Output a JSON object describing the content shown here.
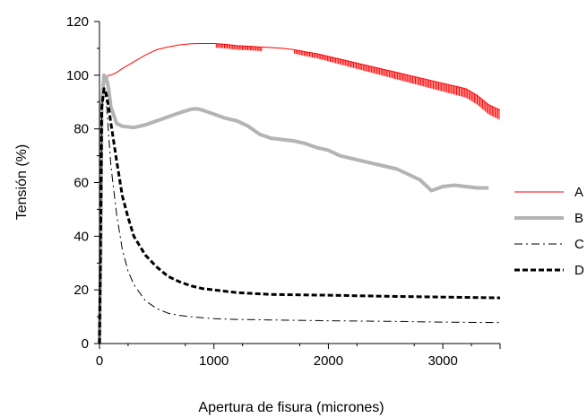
{
  "chart_data": {
    "type": "line",
    "title": "",
    "xlabel": "Apertura de fisura (micrones)",
    "ylabel": "Tensión (%)",
    "xlim": [
      0,
      3500
    ],
    "ylim": [
      0,
      120
    ],
    "xticks": [
      0,
      1000,
      2000,
      3000
    ],
    "yticks": [
      0,
      20,
      40,
      60,
      80,
      100,
      120
    ],
    "grid": false,
    "legend_position": "right",
    "series": [
      {
        "name": "A",
        "color": "#ff0000",
        "style": "solid-thin-noisy",
        "x": [
          0,
          10,
          20,
          40,
          60,
          80,
          100,
          150,
          200,
          300,
          400,
          500,
          600,
          700,
          800,
          900,
          1000,
          1100,
          1200,
          1300,
          1400,
          1500,
          1600,
          1700,
          1800,
          1900,
          2000,
          2100,
          2200,
          2300,
          2400,
          2500,
          2600,
          2700,
          2800,
          2900,
          3000,
          3100,
          3200,
          3300,
          3400,
          3500
        ],
        "y": [
          0,
          20,
          80,
          98,
          99,
          100,
          100,
          101,
          102.5,
          105,
          107.5,
          109.5,
          110.5,
          111.3,
          111.7,
          111.8,
          111.8,
          111.5,
          111,
          110.8,
          110.5,
          110.3,
          110,
          109.5,
          108.7,
          108,
          107,
          106,
          105,
          104,
          103,
          102,
          101,
          100,
          99,
          98,
          97,
          96,
          95,
          92.5,
          89,
          87
        ]
      },
      {
        "name": "B",
        "color": "#b4b4b4",
        "style": "solid-thick",
        "x": [
          0,
          10,
          20,
          40,
          60,
          80,
          100,
          150,
          200,
          300,
          400,
          500,
          600,
          700,
          800,
          850,
          900,
          1000,
          1100,
          1200,
          1300,
          1400,
          1500,
          1600,
          1700,
          1800,
          1900,
          2000,
          2100,
          2200,
          2300,
          2400,
          2500,
          2600,
          2700,
          2800,
          2900,
          3000,
          3100,
          3200,
          3300,
          3400
        ],
        "y": [
          0,
          30,
          90,
          100,
          99,
          95,
          88,
          82,
          81,
          80.5,
          81.5,
          83,
          84.5,
          86,
          87.3,
          87.5,
          87,
          85.5,
          84,
          83,
          81,
          78,
          76.5,
          76,
          75.5,
          74.5,
          73,
          72,
          70,
          69,
          68,
          67,
          66,
          65,
          63,
          61,
          57,
          58.5,
          59,
          58.5,
          58,
          58
        ]
      },
      {
        "name": "C",
        "color": "#000000",
        "style": "dash-dot",
        "x": [
          0,
          10,
          20,
          40,
          60,
          80,
          100,
          150,
          200,
          250,
          300,
          400,
          500,
          600,
          700,
          800,
          900,
          1000,
          1200,
          1500,
          2000,
          2500,
          3000,
          3500
        ],
        "y": [
          0,
          40,
          88,
          95,
          90,
          78,
          66,
          48,
          35,
          27,
          22,
          16,
          13,
          11.3,
          10.5,
          10,
          9.6,
          9.3,
          9,
          8.8,
          8.5,
          8.3,
          8,
          7.8
        ]
      },
      {
        "name": "D",
        "color": "#000000",
        "style": "dashed-thick",
        "x": [
          0,
          10,
          20,
          40,
          60,
          80,
          100,
          150,
          200,
          250,
          300,
          400,
          500,
          600,
          700,
          800,
          900,
          1000,
          1200,
          1500,
          2000,
          2500,
          3000,
          3500
        ],
        "y": [
          0,
          40,
          88,
          95,
          93,
          88,
          82,
          68,
          55,
          47,
          40,
          33,
          28.5,
          25,
          23,
          21.5,
          20.5,
          20,
          19,
          18.3,
          18,
          17.6,
          17.3,
          17
        ]
      }
    ]
  }
}
